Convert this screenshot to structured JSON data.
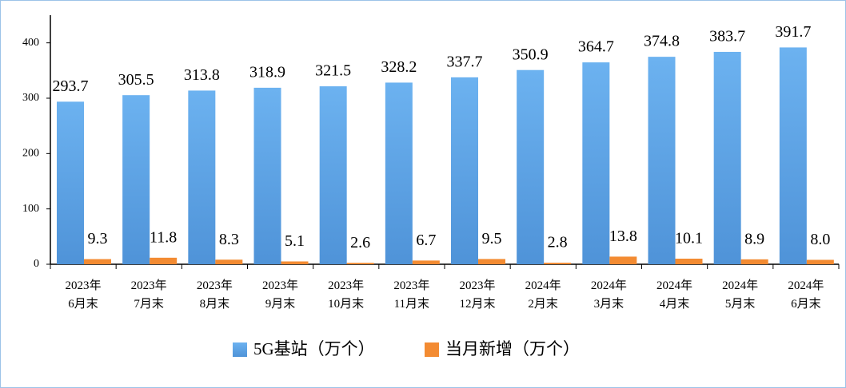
{
  "chart_data": {
    "type": "bar",
    "categories": [
      "2023年\n6月末",
      "2023年\n7月末",
      "2023年\n8月末",
      "2023年\n9月末",
      "2023年\n10月末",
      "2023年\n11月末",
      "2023年\n12月末",
      "2024年\n2月末",
      "2024年\n3月末",
      "2024年\n4月末",
      "2024年\n5月末",
      "2024年\n6月末"
    ],
    "series": [
      {
        "name": "5G基站（万个）",
        "color": "#5ba3e6",
        "values": [
          293.7,
          305.5,
          313.8,
          318.9,
          321.5,
          328.2,
          337.7,
          350.9,
          364.7,
          374.8,
          383.7,
          391.7
        ]
      },
      {
        "name": "当月新增（万个）",
        "color": "#f38b32",
        "values": [
          9.3,
          11.8,
          8.3,
          5.1,
          2.6,
          6.7,
          9.5,
          2.8,
          13.8,
          10.1,
          8.9,
          8.0
        ],
        "value_labels": [
          "9.3",
          "11.8",
          "8.3",
          "5.1",
          "2.6",
          "6.7",
          "9.5",
          "2.8",
          "13.8",
          "10.1",
          "8.9",
          "8.0"
        ]
      }
    ],
    "ylim": [
      0,
      450
    ],
    "yticks": [
      0,
      100,
      200,
      300,
      400
    ],
    "grid": false,
    "legend": "bottom"
  }
}
